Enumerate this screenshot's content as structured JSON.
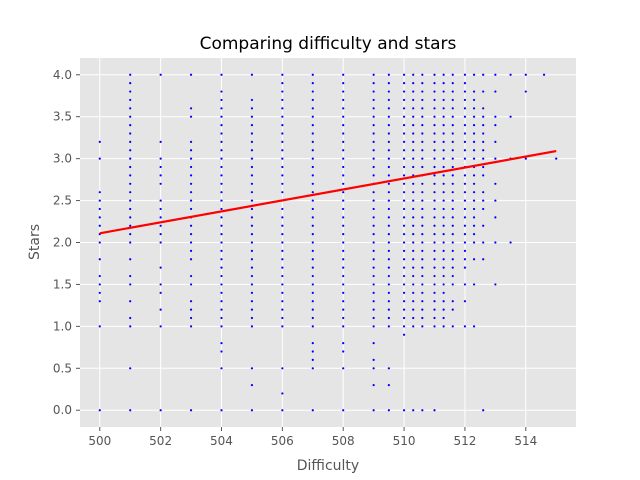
{
  "chart_data": {
    "type": "scatter",
    "title": "Comparing difficulty and stars",
    "xlabel": "Difficulty",
    "ylabel": "Stars",
    "xlim": [
      499.35,
      515.65
    ],
    "ylim": [
      -0.2,
      4.2
    ],
    "x_ticks": [
      "500",
      "502",
      "504",
      "506",
      "508",
      "510",
      "512",
      "514"
    ],
    "y_ticks": [
      "0.0",
      "0.5",
      "1.0",
      "1.5",
      "2.0",
      "2.5",
      "3.0",
      "3.5",
      "4.0"
    ],
    "grid": true,
    "background": "#e5e5e5",
    "grid_color": "#ffffff",
    "point_color": "#0000ff",
    "trend_color": "#ff0000",
    "trend_line": {
      "x": [
        500,
        515
      ],
      "y": [
        2.11,
        3.09
      ]
    },
    "columns": [
      {
        "x": 500,
        "y": [
          0,
          1,
          1.3,
          1.4,
          1.5,
          1.6,
          1.8,
          2,
          2.1,
          2.2,
          2.3,
          2.4,
          2.5,
          2.6,
          3,
          3.2
        ]
      },
      {
        "x": 501,
        "y": [
          0,
          0.5,
          1,
          1.1,
          1.3,
          1.5,
          1.6,
          1.8,
          2,
          2.1,
          2.2,
          2.3,
          2.4,
          2.5,
          2.6,
          2.7,
          2.8,
          2.9,
          3,
          3.1,
          3.2,
          3.3,
          3.4,
          3.5,
          3.6,
          3.7,
          3.8,
          3.9,
          4
        ]
      },
      {
        "x": 502,
        "y": [
          0,
          1,
          1.2,
          1.4,
          1.5,
          1.7,
          2,
          2.1,
          2.2,
          2.3,
          2.4,
          2.5,
          2.7,
          2.8,
          2.9,
          3,
          3.2,
          4
        ]
      },
      {
        "x": 503,
        "y": [
          0,
          1,
          1.1,
          1.2,
          1.3,
          1.5,
          1.6,
          1.8,
          1.9,
          2,
          2.1,
          2.2,
          2.3,
          2.4,
          2.5,
          2.6,
          2.7,
          2.8,
          2.9,
          3,
          3.1,
          3.2,
          3.5,
          3.6,
          4
        ]
      },
      {
        "x": 504,
        "y": [
          0,
          0.5,
          0.7,
          0.8,
          1,
          1.1,
          1.2,
          1.3,
          1.4,
          1.5,
          1.6,
          1.7,
          1.8,
          1.9,
          2,
          2.1,
          2.2,
          2.3,
          2.4,
          2.5,
          2.6,
          2.7,
          2.8,
          2.9,
          3,
          3.1,
          3.2,
          3.3,
          3.4,
          3.5,
          3.6,
          3.7,
          3.8,
          4
        ]
      },
      {
        "x": 505,
        "y": [
          0,
          0.3,
          0.5,
          1,
          1.1,
          1.2,
          1.3,
          1.4,
          1.5,
          1.6,
          1.7,
          1.8,
          1.9,
          2,
          2.1,
          2.2,
          2.3,
          2.4,
          2.5,
          2.6,
          2.7,
          2.8,
          2.9,
          3,
          3.1,
          3.2,
          3.3,
          3.4,
          3.5,
          3.6,
          3.7,
          4
        ]
      },
      {
        "x": 506,
        "y": [
          0,
          0.2,
          0.5,
          1,
          1.1,
          1.2,
          1.3,
          1.4,
          1.5,
          1.6,
          1.7,
          1.8,
          1.9,
          2,
          2.1,
          2.2,
          2.3,
          2.4,
          2.5,
          2.6,
          2.7,
          2.8,
          2.9,
          3,
          3.1,
          3.2,
          3.3,
          3.4,
          3.5,
          3.6,
          3.7,
          3.8,
          3.9,
          4
        ]
      },
      {
        "x": 507,
        "y": [
          0,
          0.5,
          0.6,
          0.7,
          0.8,
          1,
          1.1,
          1.2,
          1.3,
          1.4,
          1.5,
          1.6,
          1.7,
          1.8,
          1.9,
          2,
          2.1,
          2.2,
          2.3,
          2.4,
          2.5,
          2.6,
          2.7,
          2.8,
          2.9,
          3,
          3.1,
          3.2,
          3.3,
          3.4,
          3.5,
          3.6,
          3.7,
          3.8,
          3.9,
          4
        ]
      },
      {
        "x": 508,
        "y": [
          0,
          0.5,
          0.7,
          0.8,
          1,
          1.1,
          1.2,
          1.3,
          1.4,
          1.5,
          1.6,
          1.7,
          1.8,
          1.9,
          2,
          2.1,
          2.2,
          2.3,
          2.4,
          2.5,
          2.6,
          2.7,
          2.8,
          2.9,
          3,
          3.1,
          3.2,
          3.3,
          3.4,
          3.5,
          3.6,
          3.7,
          3.8,
          3.9,
          4
        ]
      },
      {
        "x": 509,
        "y": [
          0,
          0.3,
          0.5,
          0.6,
          0.8,
          1,
          1.1,
          1.2,
          1.3,
          1.4,
          1.5,
          1.6,
          1.7,
          1.8,
          1.9,
          2,
          2.1,
          2.2,
          2.3,
          2.4,
          2.5,
          2.6,
          2.7,
          2.8,
          2.9,
          3,
          3.1,
          3.2,
          3.3,
          3.4,
          3.5,
          3.6,
          3.7,
          3.8,
          3.9,
          4
        ]
      },
      {
        "x": 509.5,
        "y": [
          0,
          0.3,
          0.5,
          1,
          1.1,
          1.2,
          1.3,
          1.4,
          1.5,
          1.6,
          1.7,
          1.8,
          1.9,
          2,
          2.1,
          2.2,
          2.3,
          2.4,
          2.5,
          2.6,
          2.7,
          2.8,
          2.9,
          3,
          3.1,
          3.2,
          3.3,
          3.4,
          3.5,
          3.6,
          3.7,
          3.8,
          3.9,
          4
        ]
      },
      {
        "x": 510,
        "y": [
          0,
          0.9,
          1,
          1.1,
          1.2,
          1.3,
          1.4,
          1.5,
          1.6,
          1.7,
          1.8,
          1.9,
          2,
          2.1,
          2.2,
          2.3,
          2.4,
          2.5,
          2.6,
          2.7,
          2.8,
          2.9,
          3,
          3.1,
          3.2,
          3.3,
          3.4,
          3.5,
          3.6,
          3.7,
          3.8,
          3.9,
          4
        ]
      },
      {
        "x": 510.3,
        "y": [
          0,
          1,
          1.1,
          1.2,
          1.3,
          1.4,
          1.5,
          1.6,
          1.7,
          1.8,
          1.9,
          2,
          2.1,
          2.2,
          2.3,
          2.4,
          2.5,
          2.6,
          2.7,
          2.8,
          2.9,
          3,
          3.1,
          3.2,
          3.3,
          3.4,
          3.5,
          3.6,
          3.7,
          3.8,
          3.9,
          4
        ]
      },
      {
        "x": 510.6,
        "y": [
          0,
          1,
          1.1,
          1.2,
          1.3,
          1.4,
          1.5,
          1.6,
          1.7,
          1.8,
          1.9,
          2,
          2.1,
          2.2,
          2.3,
          2.4,
          2.5,
          2.6,
          2.7,
          2.8,
          2.9,
          3,
          3.1,
          3.2,
          3.3,
          3.4,
          3.5,
          3.6,
          3.7,
          3.8,
          3.9,
          4
        ]
      },
      {
        "x": 511,
        "y": [
          0,
          1,
          1.1,
          1.2,
          1.3,
          1.4,
          1.5,
          1.6,
          1.7,
          1.8,
          1.9,
          2,
          2.1,
          2.2,
          2.3,
          2.4,
          2.5,
          2.6,
          2.7,
          2.8,
          2.9,
          3,
          3.1,
          3.2,
          3.3,
          3.4,
          3.5,
          3.6,
          3.7,
          3.8,
          3.9,
          4
        ]
      },
      {
        "x": 511.3,
        "y": [
          1,
          1.1,
          1.2,
          1.3,
          1.4,
          1.5,
          1.6,
          1.7,
          1.8,
          1.9,
          2,
          2.1,
          2.2,
          2.3,
          2.4,
          2.5,
          2.6,
          2.7,
          2.8,
          2.9,
          3,
          3.1,
          3.2,
          3.3,
          3.4,
          3.5,
          3.6,
          3.7,
          3.8,
          3.9,
          4
        ]
      },
      {
        "x": 511.6,
        "y": [
          1,
          1.2,
          1.3,
          1.5,
          1.6,
          1.7,
          1.8,
          1.9,
          2,
          2.1,
          2.2,
          2.3,
          2.4,
          2.5,
          2.6,
          2.7,
          2.8,
          2.9,
          3,
          3.1,
          3.2,
          3.3,
          3.4,
          3.5,
          3.6,
          3.7,
          3.8,
          3.9,
          4
        ]
      },
      {
        "x": 512,
        "y": [
          1,
          1.3,
          1.5,
          1.7,
          1.8,
          1.9,
          2,
          2.1,
          2.2,
          2.3,
          2.4,
          2.5,
          2.6,
          2.7,
          2.8,
          2.9,
          3,
          3.1,
          3.2,
          3.3,
          3.4,
          3.5,
          3.6,
          3.7,
          3.8,
          3.9,
          4
        ]
      },
      {
        "x": 512.3,
        "y": [
          1,
          1.5,
          1.8,
          2,
          2.1,
          2.2,
          2.3,
          2.4,
          2.5,
          2.6,
          2.7,
          2.8,
          2.9,
          3,
          3.1,
          3.2,
          3.3,
          3.4,
          3.5,
          3.6,
          3.7,
          3.8,
          4
        ]
      },
      {
        "x": 512.6,
        "y": [
          0,
          1.8,
          2,
          2.2,
          2.4,
          2.5,
          2.6,
          2.8,
          2.9,
          3,
          3.1,
          3.2,
          3.3,
          3.4,
          3.5,
          3.6,
          3.8,
          4
        ]
      },
      {
        "x": 513,
        "y": [
          1.5,
          2,
          2.3,
          2.5,
          2.7,
          3,
          3.2,
          3.4,
          3.5,
          3.8,
          4
        ]
      },
      {
        "x": 513.5,
        "y": [
          2,
          3,
          3.5,
          4
        ]
      },
      {
        "x": 514,
        "y": [
          3,
          3.8,
          4
        ]
      },
      {
        "x": 514.6,
        "y": [
          4
        ]
      },
      {
        "x": 515,
        "y": [
          3
        ]
      }
    ]
  }
}
